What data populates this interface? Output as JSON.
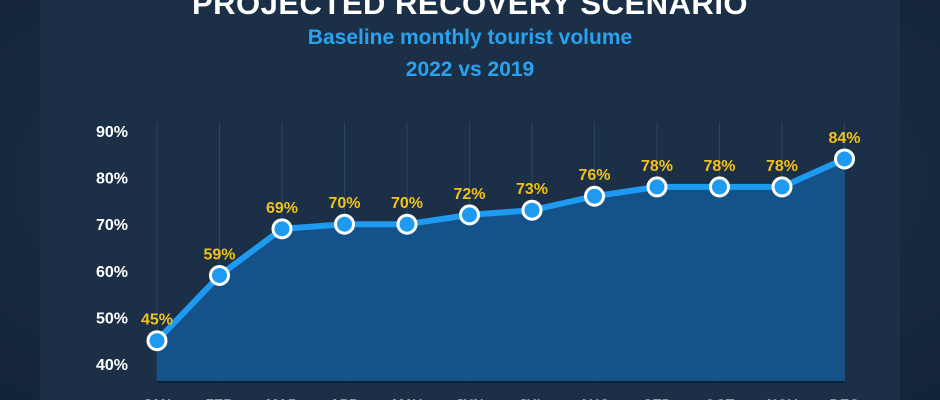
{
  "title": "PROJECTED RECOVERY SCENARIO",
  "subtitle": "Baseline monthly tourist volume",
  "subtitle2": "2022 vs 2019",
  "colors": {
    "background": "#182a40",
    "line": "#1e9af0",
    "area": "#13568f",
    "label": "#f2c21b",
    "subtitle": "#29a3f0"
  },
  "chart_data": {
    "type": "area",
    "title": "PROJECTED RECOVERY SCENARIO",
    "subtitle": "Baseline monthly tourist volume 2022 vs 2019",
    "categories": [
      "JAN",
      "FEB",
      "MAR",
      "APR",
      "MAY",
      "JUN",
      "JUL",
      "AUG",
      "SEP",
      "OCT",
      "NOV",
      "DEC"
    ],
    "values": [
      45,
      59,
      69,
      70,
      70,
      72,
      73,
      76,
      78,
      78,
      78,
      84
    ],
    "data_labels": [
      "45%",
      "59%",
      "69%",
      "70%",
      "70%",
      "72%",
      "73%",
      "76%",
      "78%",
      "78%",
      "78%",
      "84%"
    ],
    "yticks": [
      "40%",
      "50%",
      "60%",
      "70%",
      "80%",
      "90%"
    ],
    "ylim": [
      40,
      90
    ],
    "grid": "vertical",
    "legend": "none"
  }
}
